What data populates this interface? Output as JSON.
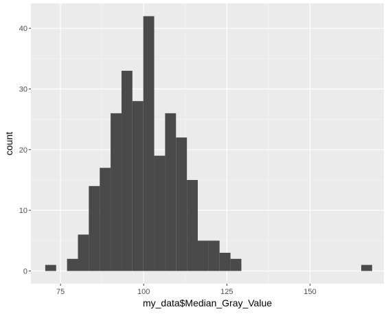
{
  "chart_data": {
    "type": "bar",
    "subtype": "histogram",
    "title": "",
    "xlabel": "my_data$Median_Gray_Value",
    "ylabel": "count",
    "xlim": [
      66.1,
      172.2
    ],
    "ylim": [
      -2.1,
      44.1
    ],
    "x_ticks": [
      75,
      100,
      125,
      150
    ],
    "y_ticks": [
      0,
      10,
      20,
      30,
      40
    ],
    "x_tick_labels": [
      "75",
      "100",
      "125",
      "150"
    ],
    "y_tick_labels": [
      "0",
      "10",
      "20",
      "30",
      "40"
    ],
    "bin_width": 3.275,
    "bins": [
      {
        "x0": 70.41,
        "x1": 73.69,
        "count": 1
      },
      {
        "x0": 76.96,
        "x1": 80.24,
        "count": 2
      },
      {
        "x0": 80.24,
        "x1": 83.51,
        "count": 6
      },
      {
        "x0": 83.51,
        "x1": 86.79,
        "count": 14
      },
      {
        "x0": 86.79,
        "x1": 90.06,
        "count": 17
      },
      {
        "x0": 90.06,
        "x1": 93.34,
        "count": 26
      },
      {
        "x0": 93.34,
        "x1": 96.61,
        "count": 33
      },
      {
        "x0": 96.61,
        "x1": 99.89,
        "count": 28
      },
      {
        "x0": 99.89,
        "x1": 103.16,
        "count": 42
      },
      {
        "x0": 103.16,
        "x1": 106.44,
        "count": 19
      },
      {
        "x0": 106.44,
        "x1": 109.71,
        "count": 26
      },
      {
        "x0": 109.71,
        "x1": 112.99,
        "count": 22
      },
      {
        "x0": 112.99,
        "x1": 116.26,
        "count": 15
      },
      {
        "x0": 116.26,
        "x1": 119.54,
        "count": 5
      },
      {
        "x0": 119.54,
        "x1": 122.81,
        "count": 5
      },
      {
        "x0": 122.81,
        "x1": 126.09,
        "count": 3
      },
      {
        "x0": 126.09,
        "x1": 129.36,
        "count": 2
      },
      {
        "x0": 165.39,
        "x1": 168.66,
        "count": 1
      }
    ],
    "colors": {
      "panel_background": "#ebebeb",
      "grid_major": "#ffffff",
      "grid_minor": "#f5f5f5",
      "bar_fill": "#4a4a4a",
      "tick_text": "#4d4d4d",
      "tick_mark": "#333333",
      "title_text": "#000000"
    },
    "grid": true,
    "legend": "none"
  }
}
